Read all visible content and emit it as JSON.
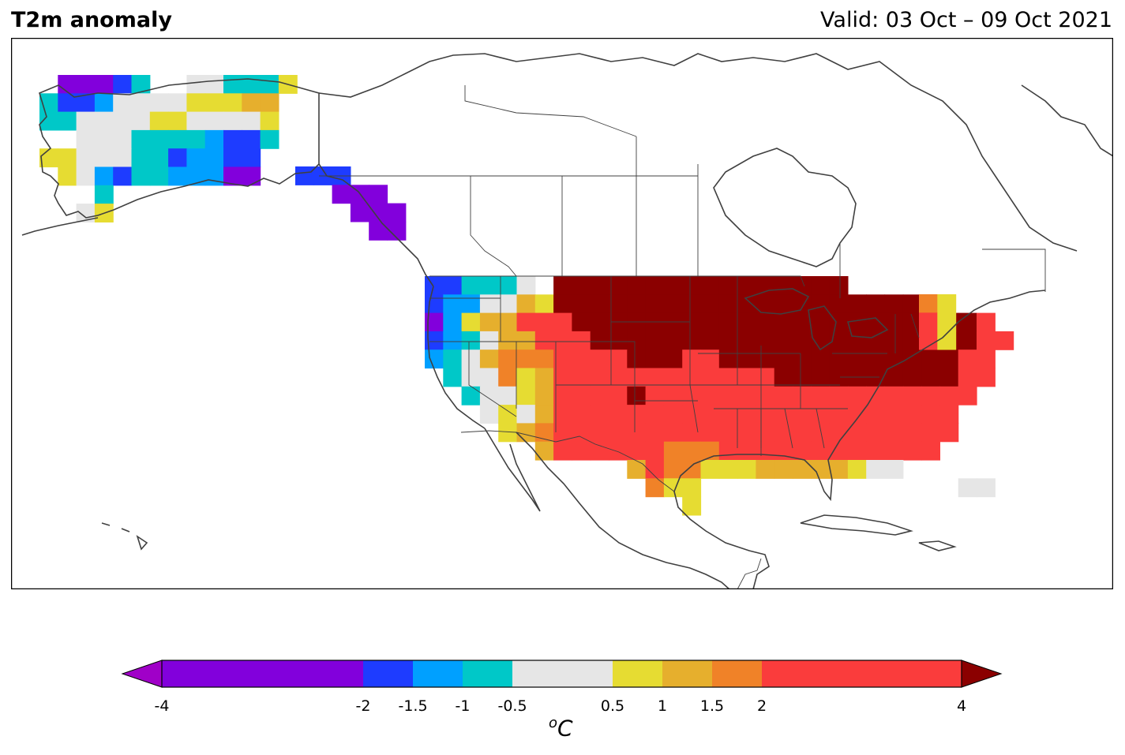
{
  "title": "T2m anomaly",
  "valid": "Valid: 03 Oct – 09 Oct 2021",
  "colorbar": {
    "unit_base": "C",
    "unit_sup": "o",
    "bins": [
      {
        "from": -4,
        "to": -2,
        "color": "#8200dc"
      },
      {
        "from": -2,
        "to": -1.5,
        "color": "#1e3cff"
      },
      {
        "from": -1.5,
        "to": -1,
        "color": "#00a0ff"
      },
      {
        "from": -1,
        "to": -0.5,
        "color": "#00c8c8"
      },
      {
        "from": -0.5,
        "to": 0.5,
        "color": "#e6e6e6"
      },
      {
        "from": 0.5,
        "to": 1,
        "color": "#e6dc32"
      },
      {
        "from": 1,
        "to": 1.5,
        "color": "#e6af2d"
      },
      {
        "from": 1.5,
        "to": 2,
        "color": "#f08228"
      },
      {
        "from": 2,
        "to": 4,
        "color": "#fa3c3c"
      }
    ],
    "under_color": "#a000c8",
    "over_color": "#8b0000",
    "ticks": [
      "-4",
      "-2",
      "-1.5",
      "-1",
      "-0.5",
      "0.5",
      "1",
      "1.5",
      "2",
      "4"
    ]
  },
  "anomaly_grid_columns": "cells in the original are pixel blocks; categories used below",
  "anomaly_regions": [
    {
      "region": "northern plains / upper midwest / great lakes / ohio valley",
      "category": "over"
    },
    {
      "region": "southern plains / southeast / mid-atlantic / new england",
      "category": "2 to 4"
    },
    {
      "region": "rockies / great basin edges",
      "category": "1.5 to 2"
    },
    {
      "region": "gulf coast / florida panhandle",
      "category": "1 to 1.5"
    },
    {
      "region": "southwest desert / maritime north",
      "category": "0.5 to 1"
    },
    {
      "region": "california interior / great basin / south florida",
      "category": "-0.5 to 0.5"
    },
    {
      "region": "california coast / nevada",
      "category": "-1 to -0.5"
    },
    {
      "region": "pacific northwest coast",
      "category": "-1.5 to -2"
    },
    {
      "region": "alaska panhandle",
      "category": "-4 to -2"
    }
  ]
}
